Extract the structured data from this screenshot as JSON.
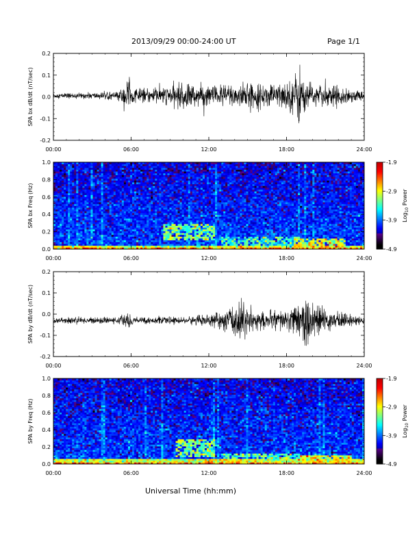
{
  "header": {
    "date_range": "2013/09/29  00:00-24:00 UT",
    "page": "Page 1/1"
  },
  "footer": {
    "xlabel": "Universal Time (hh:mm)"
  },
  "chart_data": [
    {
      "type": "line",
      "ylabel": "SPA bx dB/dt (nT/sec)",
      "x_ticks": [
        "00:00",
        "06:00",
        "12:00",
        "18:00",
        "24:00"
      ],
      "y_ticks": [
        "0.2",
        "0.1",
        "0.0",
        "-0.1",
        "-0.2"
      ],
      "xlim": [
        0,
        24
      ],
      "ylim": [
        -0.2,
        0.2
      ],
      "series": {
        "x": [
          0,
          1,
          2,
          3,
          4,
          5,
          5.6,
          5.9,
          6,
          7,
          8,
          9,
          10,
          11,
          12,
          13,
          14,
          15,
          16,
          17,
          18,
          18.5,
          19,
          19.3,
          20,
          21,
          22,
          23,
          24
        ],
        "envelope": [
          0.01,
          0.012,
          0.012,
          0.014,
          0.015,
          0.017,
          0.06,
          0.11,
          0.03,
          0.03,
          0.035,
          0.04,
          0.06,
          0.05,
          0.045,
          0.05,
          0.055,
          0.055,
          0.05,
          0.05,
          0.06,
          0.08,
          0.14,
          0.07,
          0.05,
          0.045,
          0.04,
          0.03,
          0.02
        ],
        "baseline": 0.005
      }
    },
    {
      "type": "heatmap",
      "ylabel": "SPA bx Freq (Hz)",
      "x_ticks": [
        "00:00",
        "06:00",
        "12:00",
        "18:00",
        "24:00"
      ],
      "y_ticks": [
        "1.0",
        "0.8",
        "0.6",
        "0.4",
        "0.2",
        "0.0"
      ],
      "xlim": [
        0,
        24
      ],
      "ylim": [
        0,
        1.0
      ],
      "colorbar": {
        "label": "Log10 Power",
        "ticks": [
          "-1.9",
          "-2.9",
          "-3.9",
          "-4.9"
        ],
        "min": -4.9,
        "max": -1.9
      },
      "features": {
        "background": -4.0,
        "low_band": [
          {
            "t0": 0,
            "t1": 24,
            "f0": 0,
            "f1": 0.05,
            "level": -3.0
          }
        ],
        "enhanced": [
          {
            "t0": 8.5,
            "t1": 12.5,
            "f0": 0.1,
            "f1": 0.3,
            "level": -3.2
          },
          {
            "t0": 13,
            "t1": 19,
            "f0": 0.05,
            "f1": 0.15,
            "level": -3.4
          },
          {
            "t0": 18.5,
            "t1": 22.5,
            "f0": 0.02,
            "f1": 0.12,
            "level": -2.9
          }
        ]
      }
    },
    {
      "type": "line",
      "ylabel": "SPA by dB/dt (nT/sec)",
      "x_ticks": [
        "00:00",
        "06:00",
        "12:00",
        "18:00",
        "24:00"
      ],
      "y_ticks": [
        "0.2",
        "0.1",
        "0.0",
        "-0.1",
        "-0.2"
      ],
      "xlim": [
        0,
        24
      ],
      "ylim": [
        -0.2,
        0.2
      ],
      "series": {
        "x": [
          0,
          1,
          2,
          3,
          4,
          5,
          5.7,
          6,
          6.5,
          7,
          8,
          9,
          10,
          11,
          12,
          13,
          14,
          14.5,
          15,
          16,
          17,
          18,
          19,
          19.3,
          20,
          21,
          22,
          23,
          24
        ],
        "envelope": [
          0.012,
          0.014,
          0.014,
          0.014,
          0.013,
          0.013,
          0.04,
          0.02,
          0.015,
          0.015,
          0.015,
          0.015,
          0.015,
          0.02,
          0.025,
          0.04,
          0.07,
          0.09,
          0.06,
          0.035,
          0.04,
          0.05,
          0.07,
          0.12,
          0.08,
          0.05,
          0.04,
          0.025,
          0.015
        ],
        "baseline": -0.03
      }
    },
    {
      "type": "heatmap",
      "ylabel": "SPA by Freq (Hz)",
      "x_ticks": [
        "00:00",
        "06:00",
        "12:00",
        "18:00",
        "24:00"
      ],
      "y_ticks": [
        "1.0",
        "0.8",
        "0.6",
        "0.4",
        "0.2",
        "0.0"
      ],
      "xlim": [
        0,
        24
      ],
      "ylim": [
        0,
        1.0
      ],
      "colorbar": {
        "label": "Log10 Power",
        "ticks": [
          "-1.9",
          "-2.9",
          "-3.9",
          "-4.9"
        ],
        "min": -4.9,
        "max": -1.9
      },
      "features": {
        "background": -4.0,
        "low_band": [
          {
            "t0": 0,
            "t1": 24,
            "f0": 0,
            "f1": 0.06,
            "level": -3.0
          }
        ],
        "enhanced": [
          {
            "t0": 9.5,
            "t1": 12.5,
            "f0": 0.08,
            "f1": 0.3,
            "level": -3.2
          },
          {
            "t0": 13,
            "t1": 19,
            "f0": 0.03,
            "f1": 0.12,
            "level": -3.3
          },
          {
            "t0": 19,
            "t1": 23,
            "f0": 0.02,
            "f1": 0.1,
            "level": -3.0
          }
        ]
      }
    }
  ]
}
